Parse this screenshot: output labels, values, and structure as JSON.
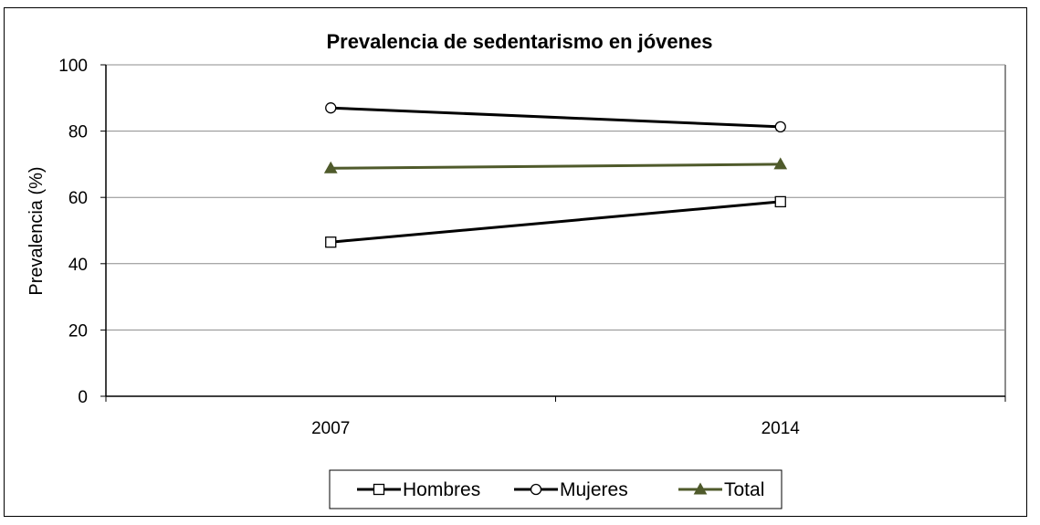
{
  "chart_data": {
    "type": "line",
    "title": "Prevalencia de sedentarismo en jóvenes",
    "xlabel": "",
    "ylabel": "Prevalencia (%)",
    "categories": [
      "2007",
      "2014"
    ],
    "ylim": [
      0,
      100
    ],
    "yticks": [
      0,
      20,
      40,
      60,
      80,
      100
    ],
    "grid": true,
    "legend_position": "bottom",
    "series": [
      {
        "name": "Hombres",
        "values": [
          46.5,
          58.7
        ],
        "marker": "square-open",
        "color": "#000000"
      },
      {
        "name": "Mujeres",
        "values": [
          87.0,
          81.3
        ],
        "marker": "circle-open",
        "color": "#000000"
      },
      {
        "name": "Total",
        "values": [
          68.8,
          70.0
        ],
        "marker": "triangle-filled",
        "color": "#4f5a2b"
      }
    ]
  }
}
